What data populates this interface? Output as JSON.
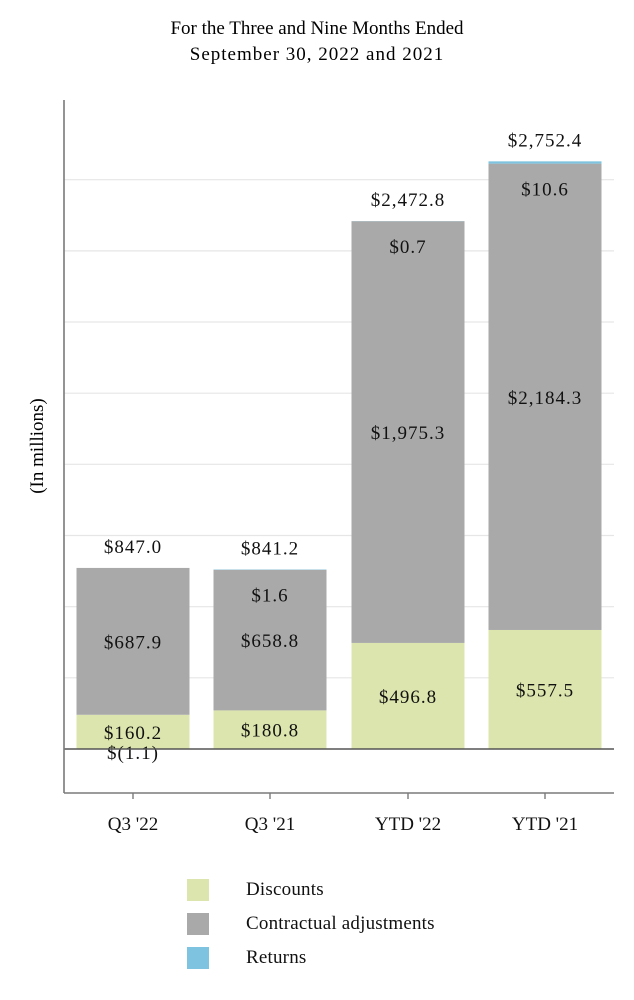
{
  "chart_data": {
    "type": "bar",
    "stacked": true,
    "title_lines": [
      "For the Three and Nine Months Ended",
      "September 30, 2022 and 2021"
    ],
    "ylabel": "(In millions)",
    "xlabel": "",
    "ylim": [
      -300,
      3000
    ],
    "gridlines_every": 333.33,
    "categories": [
      "Q3 '22",
      "Q3 '21",
      "YTD '22",
      "YTD '21"
    ],
    "series": [
      {
        "name": "Discounts",
        "color": "#dce5ad",
        "values": [
          160.2,
          180.8,
          496.8,
          557.5
        ],
        "labels": [
          "$160.2",
          "$180.8",
          "$496.8",
          "$557.5"
        ]
      },
      {
        "name": "Contractual adjustments",
        "color": "#a9a9a9",
        "values": [
          687.9,
          658.8,
          1975.3,
          2184.3
        ],
        "labels": [
          "$687.9",
          "$658.8",
          "$1,975.3",
          "$2,184.3"
        ]
      },
      {
        "name": "Returns",
        "color": "#7ec3df",
        "values": [
          -1.1,
          1.6,
          0.7,
          10.6
        ],
        "labels": [
          "$(1.1)",
          "$1.6",
          "$0.7",
          "$10.6"
        ]
      }
    ],
    "totals": [
      847.0,
      841.2,
      2472.8,
      2752.4
    ],
    "total_labels": [
      "$847.0",
      "$841.2",
      "$2,472.8",
      "$2,752.4"
    ],
    "legend": [
      "Discounts",
      "Contractual adjustments",
      "Returns"
    ],
    "legend_position": "bottom"
  }
}
